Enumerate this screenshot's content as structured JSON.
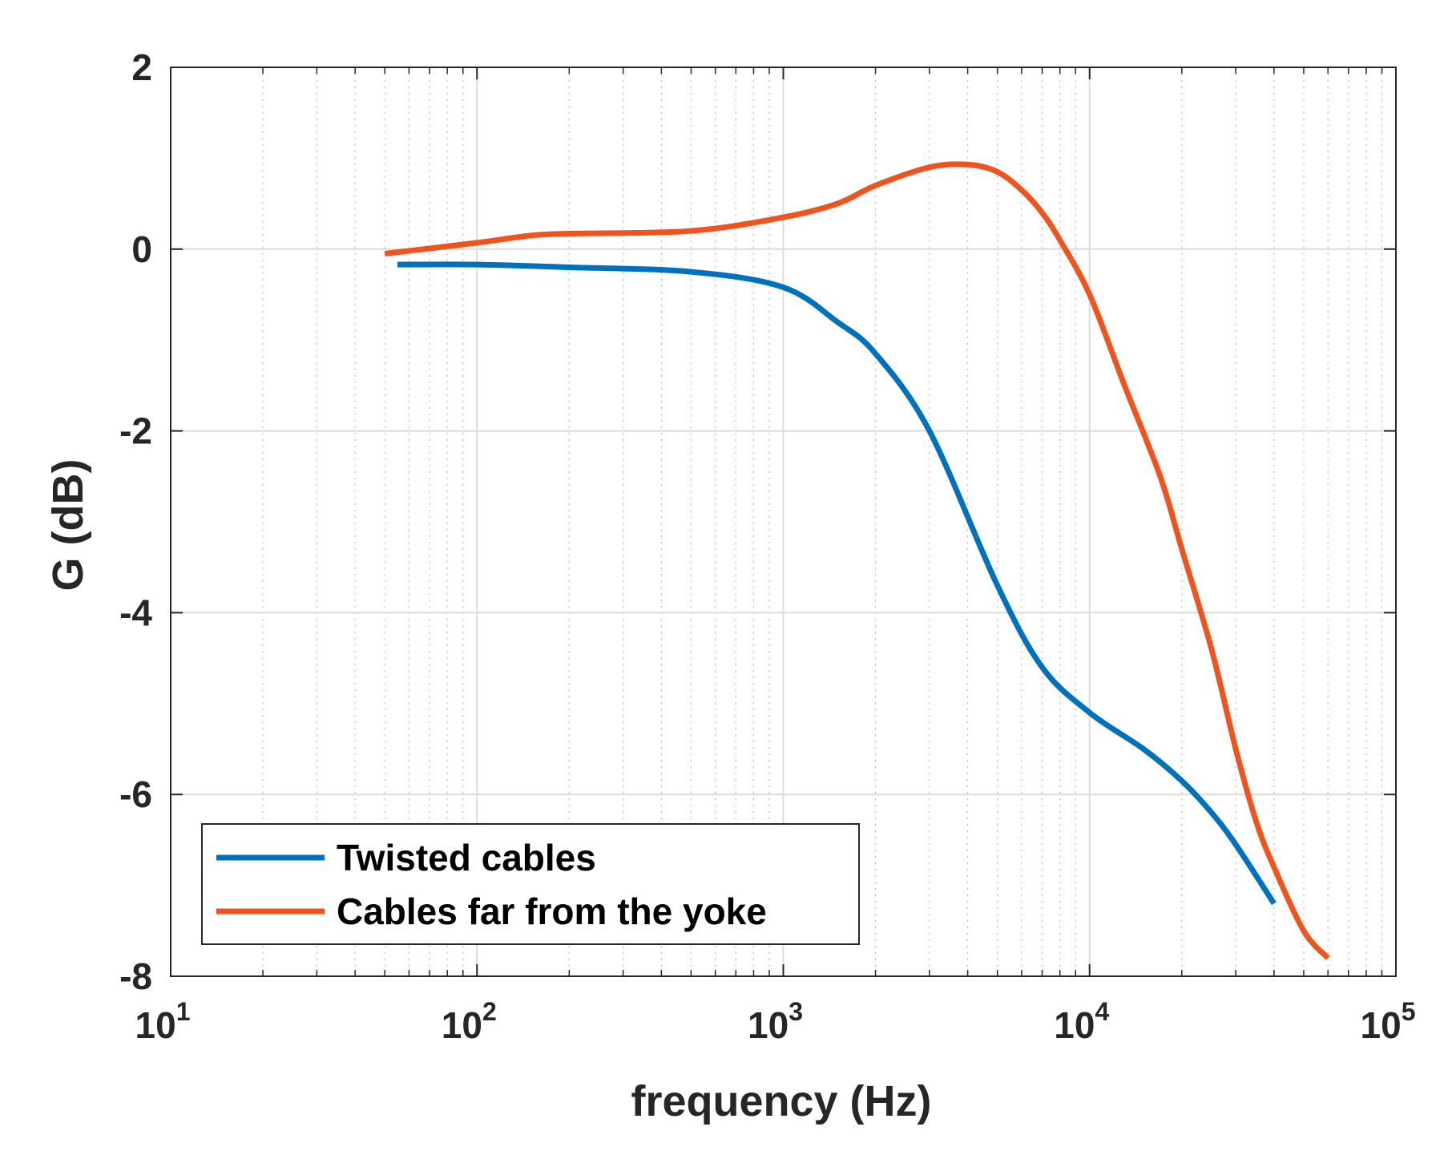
{
  "chart_data": {
    "type": "line",
    "xscale": "log",
    "xlabel": "frequency (Hz)",
    "ylabel": "G (dB)",
    "xlim": [
      10,
      100000
    ],
    "ylim": [
      -8,
      2
    ],
    "x_ticks": [
      {
        "base": "10",
        "exp": "1",
        "value": 10
      },
      {
        "base": "10",
        "exp": "2",
        "value": 100
      },
      {
        "base": "10",
        "exp": "3",
        "value": 1000
      },
      {
        "base": "10",
        "exp": "4",
        "value": 10000
      },
      {
        "base": "10",
        "exp": "5",
        "value": 100000
      }
    ],
    "y_ticks": [
      "2",
      "0",
      "-2",
      "-4",
      "-6",
      "-8"
    ],
    "grid": true,
    "legend_position": "bottom-left",
    "series": [
      {
        "name": "Twisted cables",
        "color": "#0072BD",
        "x": [
          55,
          100,
          200,
          500,
          1000,
          1500,
          2000,
          3000,
          5000,
          7000,
          10000,
          15000,
          20000,
          25000,
          30000,
          40000
        ],
        "y": [
          -0.17,
          -0.17,
          -0.2,
          -0.25,
          -0.42,
          -0.8,
          -1.15,
          -2.0,
          -3.7,
          -4.6,
          -5.1,
          -5.5,
          -5.85,
          -6.2,
          -6.55,
          -7.2
        ]
      },
      {
        "name": "Cables far from the yoke",
        "color": "#F0541E",
        "x": [
          50,
          100,
          150,
          200,
          500,
          1000,
          1500,
          2000,
          3000,
          4000,
          5000,
          6000,
          7000,
          8000,
          10000,
          13000,
          17000,
          20000,
          25000,
          30000,
          35000,
          40000,
          50000,
          60000
        ],
        "y": [
          -0.05,
          0.07,
          0.15,
          0.17,
          0.2,
          0.35,
          0.5,
          0.7,
          0.9,
          0.93,
          0.85,
          0.65,
          0.4,
          0.1,
          -0.5,
          -1.5,
          -2.5,
          -3.3,
          -4.4,
          -5.5,
          -6.3,
          -6.8,
          -7.5,
          -7.8
        ]
      }
    ]
  }
}
